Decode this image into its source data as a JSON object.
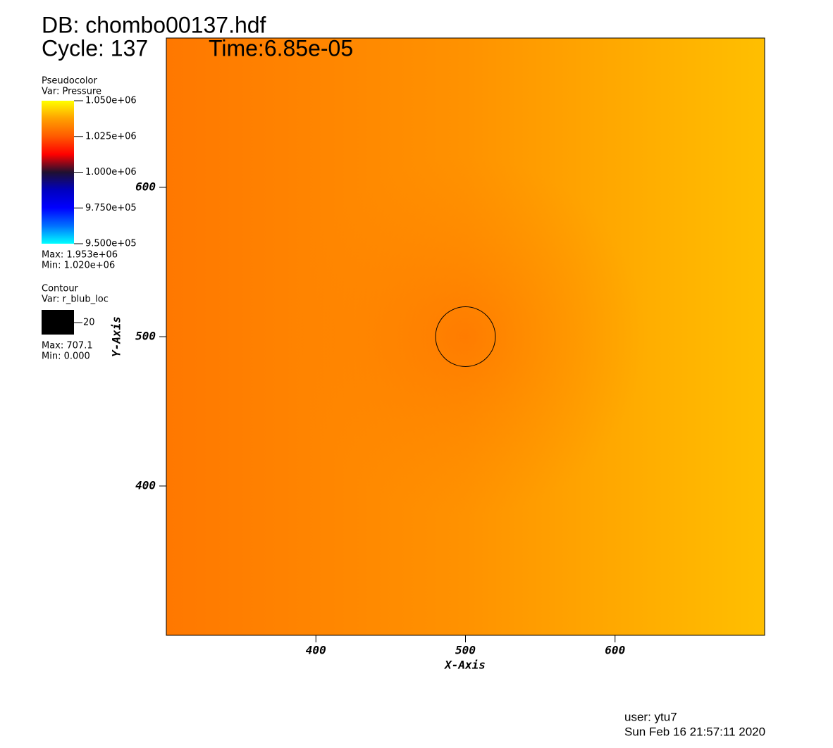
{
  "chart_data": {
    "type": "pseudocolor",
    "title": "DB: chombo00137.hdf",
    "cycle": "Cycle: 137",
    "time": "Time:6.85e-05",
    "xlabel": "X-Axis",
    "ylabel": "Y-Axis",
    "xlim": [
      300,
      700
    ],
    "ylim": [
      300,
      700
    ],
    "xticks": [
      400,
      500,
      600
    ],
    "yticks": [
      400,
      500,
      600
    ],
    "pseudocolor_legend": {
      "title": "Pseudocolor",
      "var": "Var: Pressure",
      "lim": [
        950000,
        1050000
      ],
      "ticks": [
        {
          "value": 1050000,
          "label": "1.050e+06"
        },
        {
          "value": 1025000,
          "label": "1.025e+06"
        },
        {
          "value": 1000000,
          "label": "1.000e+06"
        },
        {
          "value": 975000,
          "label": "9.750e+05"
        },
        {
          "value": 950000,
          "label": "9.500e+05"
        }
      ],
      "colors": [
        "#00ffff",
        "#0070ff",
        "#0000ff",
        "#0000c0",
        "#201030",
        "#ff0000",
        "#ff5a00",
        "#ffa000",
        "#ffff00"
      ],
      "max": "Max:  1.953e+06",
      "min": "Min:  1.020e+06"
    },
    "contour_legend": {
      "title": "Contour",
      "var": "Var: r_blub_loc",
      "color": "#000000",
      "level": 20,
      "max": "Max: 707.1",
      "min": "Min: 0.000"
    },
    "contour_center": {
      "x": 500,
      "y": 500
    },
    "user": "user: ytu7",
    "date": "Sun Feb 16 21:57:11 2020"
  }
}
